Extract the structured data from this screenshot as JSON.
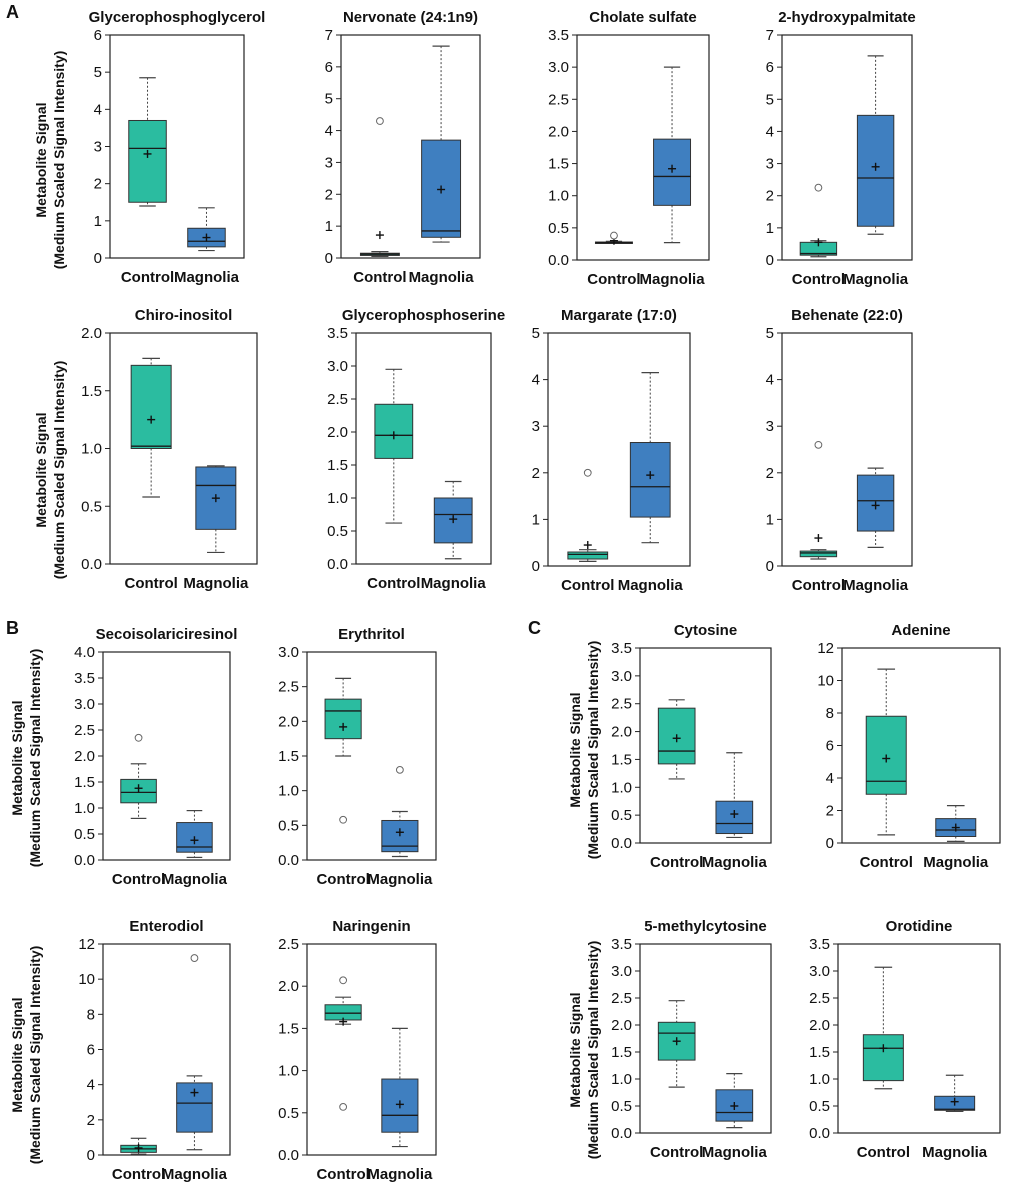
{
  "panel_labels": [
    "A",
    "B",
    "C"
  ],
  "y_axis_label": {
    "line1": "Metabolite Signal",
    "line2": "(Medium Scaled Signal Intensity)"
  },
  "colors": {
    "control": "#2bbca0",
    "magnolia": "#3f7fc0",
    "edge": "#333333"
  },
  "chart_data": [
    {
      "type": "box",
      "title": "Glycerophosphoglycerol",
      "categories": [
        "Control",
        "Magnolia"
      ],
      "ylim": [
        0,
        6
      ],
      "yticks": [
        "0",
        "1",
        "2",
        "3",
        "4",
        "5",
        "6"
      ],
      "series": [
        {
          "name": "Control",
          "min": 1.4,
          "q1": 1.5,
          "median": 2.95,
          "q3": 3.7,
          "max": 4.85,
          "mean": 2.8,
          "outliers": []
        },
        {
          "name": "Magnolia",
          "min": 0.2,
          "q1": 0.3,
          "median": 0.45,
          "q3": 0.8,
          "max": 1.35,
          "mean": 0.55,
          "outliers": []
        }
      ]
    },
    {
      "type": "box",
      "title": "Nervonate (24:1n9)",
      "categories": [
        "Control",
        "Magnolia"
      ],
      "ylim": [
        0,
        7
      ],
      "yticks": [
        "0",
        "1",
        "2",
        "3",
        "4",
        "5",
        "6",
        "7"
      ],
      "series": [
        {
          "name": "Control",
          "min": 0.05,
          "q1": 0.08,
          "median": 0.12,
          "q3": 0.15,
          "max": 0.2,
          "mean": 0.72,
          "outliers": [
            4.3
          ]
        },
        {
          "name": "Magnolia",
          "min": 0.5,
          "q1": 0.65,
          "median": 0.85,
          "q3": 3.7,
          "max": 6.65,
          "mean": 2.15,
          "outliers": []
        }
      ]
    },
    {
      "type": "box",
      "title": "Cholate sulfate",
      "categories": [
        "Control",
        "Magnolia"
      ],
      "ylim": [
        0,
        3.5
      ],
      "yticks": [
        "0.0",
        "0.5",
        "1.0",
        "1.5",
        "2.0",
        "2.5",
        "3.0",
        "3.5"
      ],
      "series": [
        {
          "name": "Control",
          "min": 0.27,
          "q1": 0.27,
          "median": 0.27,
          "q3": 0.28,
          "max": 0.29,
          "mean": 0.3,
          "outliers": [
            0.38
          ]
        },
        {
          "name": "Magnolia",
          "min": 0.27,
          "q1": 0.85,
          "median": 1.3,
          "q3": 1.88,
          "max": 3.0,
          "mean": 1.42,
          "outliers": []
        }
      ]
    },
    {
      "type": "box",
      "title": "2-hydroxypalmitate",
      "categories": [
        "Control",
        "Magnolia"
      ],
      "ylim": [
        0,
        7
      ],
      "yticks": [
        "0",
        "1",
        "2",
        "3",
        "4",
        "5",
        "6",
        "7"
      ],
      "series": [
        {
          "name": "Control",
          "min": 0.1,
          "q1": 0.15,
          "median": 0.2,
          "q3": 0.55,
          "max": 0.6,
          "mean": 0.55,
          "outliers": [
            2.25
          ]
        },
        {
          "name": "Magnolia",
          "min": 0.8,
          "q1": 1.05,
          "median": 2.55,
          "q3": 4.5,
          "max": 6.35,
          "mean": 2.9,
          "outliers": []
        }
      ]
    },
    {
      "type": "box",
      "title": "Chiro-inositol",
      "categories": [
        "Control",
        "Magnolia"
      ],
      "ylim": [
        0,
        2.0
      ],
      "yticks": [
        "0.0",
        "0.5",
        "1.0",
        "1.5",
        "2.0"
      ],
      "series": [
        {
          "name": "Control",
          "min": 0.58,
          "q1": 1.0,
          "median": 1.02,
          "q3": 1.72,
          "max": 1.78,
          "mean": 1.25,
          "outliers": []
        },
        {
          "name": "Magnolia",
          "min": 0.1,
          "q1": 0.3,
          "median": 0.68,
          "q3": 0.84,
          "max": 0.85,
          "mean": 0.57,
          "outliers": []
        }
      ]
    },
    {
      "type": "box",
      "title": "Glycerophosphoserine",
      "categories": [
        "Control",
        "Magnolia"
      ],
      "ylim": [
        0,
        3.5
      ],
      "yticks": [
        "0.0",
        "0.5",
        "1.0",
        "1.5",
        "2.0",
        "2.5",
        "3.0",
        "3.5"
      ],
      "series": [
        {
          "name": "Control",
          "min": 0.62,
          "q1": 1.6,
          "median": 1.95,
          "q3": 2.42,
          "max": 2.95,
          "mean": 1.95,
          "outliers": []
        },
        {
          "name": "Magnolia",
          "min": 0.08,
          "q1": 0.32,
          "median": 0.75,
          "q3": 1.0,
          "max": 1.25,
          "mean": 0.68,
          "outliers": []
        }
      ]
    },
    {
      "type": "box",
      "title": "Margarate (17:0)",
      "categories": [
        "Control",
        "Magnolia"
      ],
      "ylim": [
        0,
        5
      ],
      "yticks": [
        "0",
        "1",
        "2",
        "3",
        "4",
        "5"
      ],
      "series": [
        {
          "name": "Control",
          "min": 0.1,
          "q1": 0.15,
          "median": 0.25,
          "q3": 0.3,
          "max": 0.35,
          "mean": 0.45,
          "outliers": [
            2.0
          ]
        },
        {
          "name": "Magnolia",
          "min": 0.5,
          "q1": 1.05,
          "median": 1.7,
          "q3": 2.65,
          "max": 4.15,
          "mean": 1.95,
          "outliers": []
        }
      ]
    },
    {
      "type": "box",
      "title": "Behenate (22:0)",
      "categories": [
        "Control",
        "Magnolia"
      ],
      "ylim": [
        0,
        5
      ],
      "yticks": [
        "0",
        "1",
        "2",
        "3",
        "4",
        "5"
      ],
      "series": [
        {
          "name": "Control",
          "min": 0.15,
          "q1": 0.2,
          "median": 0.28,
          "q3": 0.32,
          "max": 0.35,
          "mean": 0.6,
          "outliers": [
            2.6
          ]
        },
        {
          "name": "Magnolia",
          "min": 0.4,
          "q1": 0.75,
          "median": 1.4,
          "q3": 1.95,
          "max": 2.1,
          "mean": 1.3,
          "outliers": []
        }
      ]
    },
    {
      "type": "box",
      "title": "Secoisolariciresinol",
      "categories": [
        "Control",
        "Magnolia"
      ],
      "ylim": [
        0,
        4.0
      ],
      "yticks": [
        "0.0",
        "0.5",
        "1.0",
        "1.5",
        "2.0",
        "2.5",
        "3.0",
        "3.5",
        "4.0"
      ],
      "series": [
        {
          "name": "Control",
          "min": 0.8,
          "q1": 1.1,
          "median": 1.3,
          "q3": 1.55,
          "max": 1.85,
          "mean": 1.38,
          "outliers": [
            2.35
          ]
        },
        {
          "name": "Magnolia",
          "min": 0.05,
          "q1": 0.15,
          "median": 0.25,
          "q3": 0.72,
          "max": 0.95,
          "mean": 0.38,
          "outliers": []
        }
      ]
    },
    {
      "type": "box",
      "title": "Erythritol",
      "categories": [
        "Control",
        "Magnolia"
      ],
      "ylim": [
        0,
        3.0
      ],
      "yticks": [
        "0.0",
        "0.5",
        "1.0",
        "1.5",
        "2.0",
        "2.5",
        "3.0"
      ],
      "series": [
        {
          "name": "Control",
          "min": 1.5,
          "q1": 1.75,
          "median": 2.15,
          "q3": 2.32,
          "max": 2.62,
          "mean": 1.92,
          "outliers": [
            0.58
          ]
        },
        {
          "name": "Magnolia",
          "min": 0.05,
          "q1": 0.12,
          "median": 0.2,
          "q3": 0.57,
          "max": 0.7,
          "mean": 0.4,
          "outliers": [
            1.3
          ]
        }
      ]
    },
    {
      "type": "box",
      "title": "Enterodiol",
      "categories": [
        "Control",
        "Magnolia"
      ],
      "ylim": [
        0,
        12
      ],
      "yticks": [
        "0",
        "2",
        "4",
        "6",
        "8",
        "10",
        "12"
      ],
      "series": [
        {
          "name": "Control",
          "min": 0.05,
          "q1": 0.15,
          "median": 0.35,
          "q3": 0.55,
          "max": 0.95,
          "mean": 0.4,
          "outliers": []
        },
        {
          "name": "Magnolia",
          "min": 0.3,
          "q1": 1.3,
          "median": 2.95,
          "q3": 4.1,
          "max": 4.5,
          "mean": 3.55,
          "outliers": [
            11.2
          ]
        }
      ]
    },
    {
      "type": "box",
      "title": "Naringenin",
      "categories": [
        "Control",
        "Magnolia"
      ],
      "ylim": [
        0,
        2.5
      ],
      "yticks": [
        "0.0",
        "0.5",
        "1.0",
        "1.5",
        "2.0",
        "2.5"
      ],
      "series": [
        {
          "name": "Control",
          "min": 1.55,
          "q1": 1.6,
          "median": 1.68,
          "q3": 1.78,
          "max": 1.87,
          "mean": 1.58,
          "outliers": [
            2.07,
            0.57
          ]
        },
        {
          "name": "Magnolia",
          "min": 0.1,
          "q1": 0.27,
          "median": 0.47,
          "q3": 0.9,
          "max": 1.5,
          "mean": 0.6,
          "outliers": []
        }
      ]
    },
    {
      "type": "box",
      "title": "Cytosine",
      "categories": [
        "Control",
        "Magnolia"
      ],
      "ylim": [
        0,
        3.5
      ],
      "yticks": [
        "0.0",
        "0.5",
        "1.0",
        "1.5",
        "2.0",
        "2.5",
        "3.0",
        "3.5"
      ],
      "series": [
        {
          "name": "Control",
          "min": 1.15,
          "q1": 1.42,
          "median": 1.65,
          "q3": 2.42,
          "max": 2.57,
          "mean": 1.88,
          "outliers": []
        },
        {
          "name": "Magnolia",
          "min": 0.1,
          "q1": 0.17,
          "median": 0.35,
          "q3": 0.75,
          "max": 1.62,
          "mean": 0.52,
          "outliers": []
        }
      ]
    },
    {
      "type": "box",
      "title": "Adenine",
      "categories": [
        "Control",
        "Magnolia"
      ],
      "ylim": [
        0,
        12
      ],
      "yticks": [
        "0",
        "2",
        "4",
        "6",
        "8",
        "10",
        "12"
      ],
      "series": [
        {
          "name": "Control",
          "min": 0.5,
          "q1": 3.0,
          "median": 3.8,
          "q3": 7.8,
          "max": 10.7,
          "mean": 5.2,
          "outliers": []
        },
        {
          "name": "Magnolia",
          "min": 0.1,
          "q1": 0.4,
          "median": 0.8,
          "q3": 1.5,
          "max": 2.3,
          "mean": 0.95,
          "outliers": []
        }
      ]
    },
    {
      "type": "box",
      "title": "5-methylcytosine",
      "categories": [
        "Control",
        "Magnolia"
      ],
      "ylim": [
        0,
        3.5
      ],
      "yticks": [
        "0.0",
        "0.5",
        "1.0",
        "1.5",
        "2.0",
        "2.5",
        "3.0",
        "3.5"
      ],
      "series": [
        {
          "name": "Control",
          "min": 0.85,
          "q1": 1.35,
          "median": 1.85,
          "q3": 2.05,
          "max": 2.45,
          "mean": 1.7,
          "outliers": []
        },
        {
          "name": "Magnolia",
          "min": 0.1,
          "q1": 0.22,
          "median": 0.38,
          "q3": 0.8,
          "max": 1.1,
          "mean": 0.5,
          "outliers": []
        }
      ]
    },
    {
      "type": "box",
      "title": "Orotidine",
      "categories": [
        "Control",
        "Magnolia"
      ],
      "ylim": [
        0,
        3.5
      ],
      "yticks": [
        "0.0",
        "0.5",
        "1.0",
        "1.5",
        "2.0",
        "2.5",
        "3.0",
        "3.5"
      ],
      "series": [
        {
          "name": "Control",
          "min": 0.82,
          "q1": 0.97,
          "median": 1.57,
          "q3": 1.82,
          "max": 3.07,
          "mean": 1.57,
          "outliers": []
        },
        {
          "name": "Magnolia",
          "min": 0.4,
          "q1": 0.42,
          "median": 0.44,
          "q3": 0.68,
          "max": 1.07,
          "mean": 0.58,
          "outliers": []
        }
      ]
    }
  ]
}
